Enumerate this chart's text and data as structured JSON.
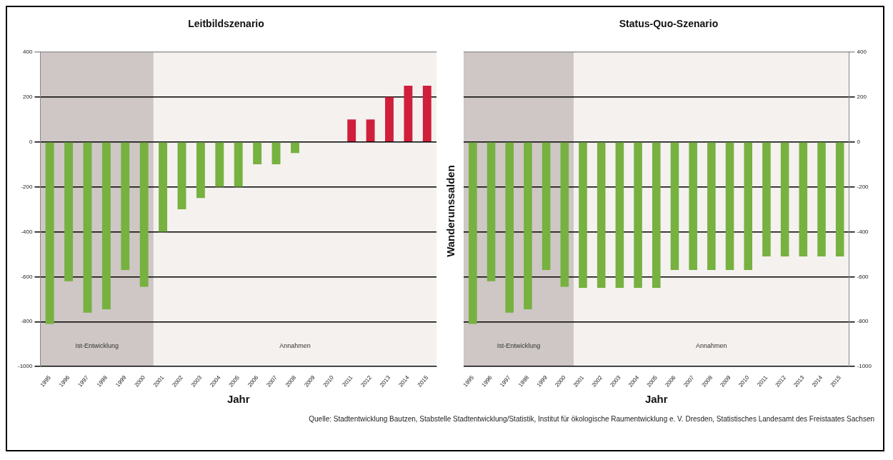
{
  "chart_data": [
    {
      "type": "bar",
      "title": "Leitbildszenario",
      "xlabel": "Jahr",
      "categories": [
        "1995",
        "1996",
        "1997",
        "1998",
        "1999",
        "2000",
        "2001",
        "2002",
        "2003",
        "2004",
        "2005",
        "2006",
        "2007",
        "2008",
        "2009",
        "2010",
        "2011",
        "2012",
        "2013",
        "2014",
        "2015"
      ],
      "series": [
        {
          "values": [
            -810,
            -620,
            -760,
            -745,
            -570,
            -645,
            -400,
            -300,
            -250,
            -200,
            -200,
            -100,
            -100,
            -50,
            0,
            0,
            100,
            100,
            200,
            250,
            250
          ],
          "colors": [
            "#77b140",
            "#77b140",
            "#77b140",
            "#77b140",
            "#77b140",
            "#77b140",
            "#77b140",
            "#77b140",
            "#77b140",
            "#77b140",
            "#77b140",
            "#77b140",
            "#77b140",
            "#77b140",
            "#77b140",
            "#77b140",
            "#cf1f3a",
            "#cf1f3a",
            "#cf1f3a",
            "#cf1f3a",
            "#cf1f3a"
          ]
        }
      ],
      "ylim": [
        -1000,
        400
      ],
      "yticks": [
        -1000,
        -800,
        -600,
        -400,
        -200,
        0,
        200,
        400
      ],
      "grid": "y",
      "bands": [
        {
          "axis": "x",
          "from": "1995",
          "to": "2000",
          "label": "Ist-Entwicklung",
          "color": "#cec7c5"
        },
        {
          "axis": "x",
          "from": "2001",
          "to": "2015",
          "label": "Annahmen",
          "color": "#f4f1ef"
        }
      ]
    },
    {
      "type": "bar",
      "title": "Status-Quo-Szenario",
      "xlabel": "Jahr",
      "ylabel": "Wanderunssalden",
      "categories": [
        "1995",
        "1996",
        "1997",
        "1998",
        "1999",
        "2000",
        "2001",
        "2002",
        "2003",
        "2004",
        "2005",
        "2006",
        "2007",
        "2008",
        "2009",
        "2010",
        "2011",
        "2012",
        "2013",
        "2014",
        "2015"
      ],
      "series": [
        {
          "values": [
            -810,
            -620,
            -760,
            -745,
            -570,
            -645,
            -650,
            -650,
            -650,
            -650,
            -650,
            -570,
            -570,
            -570,
            -570,
            -570,
            -510,
            -510,
            -510,
            -510,
            -510
          ],
          "color": "#77b140",
          "axis": "y2"
        }
      ],
      "y2lim": [
        -1000,
        400
      ],
      "y2ticks": [
        -1000,
        -800,
        -600,
        -400,
        -200,
        0,
        200,
        400
      ],
      "grid": "y",
      "bands": [
        {
          "axis": "x",
          "from": "1995",
          "to": "2000",
          "label": "Ist-Entwicklung",
          "color": "#cec7c5"
        },
        {
          "axis": "x",
          "from": "2001",
          "to": "2015",
          "label": "Annahmen",
          "color": "#f4f1ef"
        }
      ],
      "annotations": [
        "Quelle: Stadtentwicklung Bautzen, Stabstelle Stadtentwicklung/Statistik, Institut für ökologische Raumentwicklung e. V. Dresden, Statistisches Landesamt des Freistaates Sachsen"
      ]
    }
  ]
}
